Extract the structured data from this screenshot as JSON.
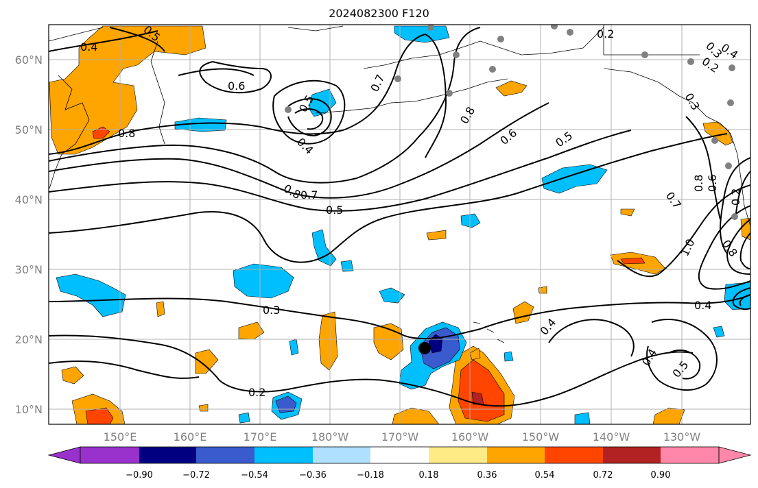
{
  "title": "2024082300 F120",
  "map": {
    "lon_ticks": [
      "150°E",
      "160°E",
      "170°E",
      "180°W",
      "170°W",
      "160°W",
      "150°W",
      "140°W",
      "130°W"
    ],
    "lat_ticks": [
      "60°N",
      "50°N",
      "40°N",
      "30°N",
      "20°N",
      "10°N"
    ],
    "contour_labels": [
      "0.4",
      "0.5",
      "0.6",
      "0.8",
      "0.5",
      "0.4",
      "0.7",
      "0.8",
      "0.6",
      "0.5",
      "0.8",
      "0.7",
      "0.5",
      "0.3",
      "0.2",
      "0.4",
      "0.4",
      "0.4",
      "0.5",
      "0.7",
      "1.0",
      "0.8",
      "0.2",
      "0.3",
      "0.2",
      "0.4",
      "0.3",
      "0.8",
      "0.6",
      "0.2"
    ],
    "colors": {
      "neg_090": "#9932CC",
      "neg_072": "#000080",
      "neg_054": "#3A5BCD",
      "neg_036": "#00BFFF",
      "neg_018": "#B0E0FF",
      "neutral": "#FFFFFF",
      "pos_018": "#FFEB85",
      "pos_036": "#FFA500",
      "pos_054": "#FF4500",
      "pos_072": "#B22222",
      "pos_090": "#FF88AA"
    }
  },
  "colorbar": {
    "ticks": [
      "−0.90",
      "−0.72",
      "−0.54",
      "−0.36",
      "−0.18",
      "0.18",
      "0.36",
      "0.54",
      "0.72",
      "0.90"
    ]
  }
}
